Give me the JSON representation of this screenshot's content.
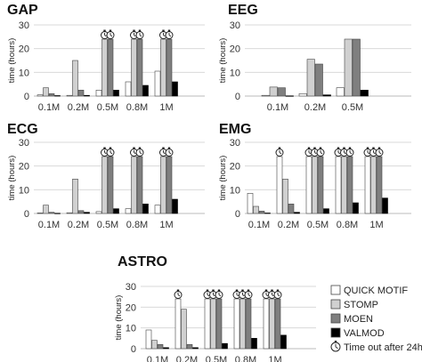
{
  "legend": [
    {
      "name": "QUICK MOTIF",
      "color": "#ffffff"
    },
    {
      "name": "STOMP",
      "color": "#d0d0d0"
    },
    {
      "name": "MOEN",
      "color": "#7f7f7f"
    },
    {
      "name": "VALMOD",
      "color": "#000000"
    }
  ],
  "timeout_note": "Time out after 24h",
  "chart_data": [
    {
      "type": "bar",
      "title": "GAP",
      "ylabel": "time (hours)",
      "ylim": [
        0,
        30
      ],
      "yticks": [
        0,
        10,
        20,
        30
      ],
      "categories": [
        "0.1M",
        "0.2M",
        "0.5M",
        "0.8M",
        "1M"
      ],
      "series": [
        {
          "name": "QUICK MOTIF",
          "values": [
            0.5,
            0.3,
            2.5,
            6,
            10.5
          ]
        },
        {
          "name": "STOMP",
          "values": [
            3.5,
            15,
            24,
            24,
            24
          ]
        },
        {
          "name": "MOEN",
          "values": [
            1,
            2.5,
            24,
            24,
            24
          ]
        },
        {
          "name": "VALMOD",
          "values": [
            0.2,
            0.3,
            2.5,
            4.5,
            6
          ]
        }
      ],
      "timeouts": [
        [
          2,
          1
        ],
        [
          2,
          2
        ],
        [
          3,
          1
        ],
        [
          3,
          2
        ],
        [
          4,
          1
        ],
        [
          4,
          2
        ]
      ]
    },
    {
      "type": "bar",
      "title": "EEG",
      "ylabel": "time (hours)",
      "ylim": [
        0,
        30
      ],
      "yticks": [
        0,
        10,
        20,
        30
      ],
      "categories": [
        "0.1M",
        "0.2M",
        "0.5M"
      ],
      "series": [
        {
          "name": "QUICK MOTIF",
          "values": [
            0.3,
            1,
            3.5
          ]
        },
        {
          "name": "STOMP",
          "values": [
            3.8,
            15.5,
            24
          ]
        },
        {
          "name": "MOEN",
          "values": [
            3.5,
            13.5,
            24
          ]
        },
        {
          "name": "VALMOD",
          "values": [
            0.1,
            0.5,
            2.5
          ]
        }
      ],
      "timeouts": []
    },
    {
      "type": "bar",
      "title": "ECG",
      "ylabel": "time (hours)",
      "ylim": [
        0,
        30
      ],
      "yticks": [
        0,
        10,
        20,
        30
      ],
      "categories": [
        "0.1M",
        "0.2M",
        "0.5M",
        "0.8M",
        "1M"
      ],
      "series": [
        {
          "name": "QUICK MOTIF",
          "values": [
            0.2,
            0.3,
            0.8,
            2,
            3.5
          ]
        },
        {
          "name": "STOMP",
          "values": [
            3.5,
            14.5,
            24,
            24,
            24
          ]
        },
        {
          "name": "MOEN",
          "values": [
            0.5,
            1.2,
            24,
            24,
            24
          ]
        },
        {
          "name": "VALMOD",
          "values": [
            0.1,
            0.5,
            2,
            4,
            6
          ]
        }
      ],
      "timeouts": [
        [
          2,
          1
        ],
        [
          2,
          2
        ],
        [
          3,
          1
        ],
        [
          3,
          2
        ],
        [
          4,
          1
        ],
        [
          4,
          2
        ]
      ]
    },
    {
      "type": "bar",
      "title": "EMG",
      "ylabel": "time (hours)",
      "ylim": [
        0,
        30
      ],
      "yticks": [
        0,
        10,
        20,
        30
      ],
      "categories": [
        "0.1M",
        "0.2M",
        "0.5M",
        "0.8M",
        "1M"
      ],
      "series": [
        {
          "name": "QUICK MOTIF",
          "values": [
            8.5,
            24,
            24,
            24,
            24
          ]
        },
        {
          "name": "STOMP",
          "values": [
            3,
            14.5,
            24,
            24,
            24
          ]
        },
        {
          "name": "MOEN",
          "values": [
            1,
            4,
            24,
            24,
            24
          ]
        },
        {
          "name": "VALMOD",
          "values": [
            0.2,
            0.5,
            2,
            4.5,
            6.5
          ]
        }
      ],
      "timeouts": [
        [
          1,
          0
        ],
        [
          2,
          0
        ],
        [
          2,
          1
        ],
        [
          2,
          2
        ],
        [
          3,
          0
        ],
        [
          3,
          1
        ],
        [
          3,
          2
        ],
        [
          4,
          0
        ],
        [
          4,
          1
        ],
        [
          4,
          2
        ]
      ]
    },
    {
      "type": "bar",
      "title": "ASTRO",
      "ylabel": "time (hours)",
      "ylim": [
        0,
        30
      ],
      "yticks": [
        0,
        10,
        20,
        30
      ],
      "categories": [
        "0.1M",
        "0.2M",
        "0.5M",
        "0.8M",
        "1M"
      ],
      "series": [
        {
          "name": "QUICK MOTIF",
          "values": [
            9,
            24,
            24,
            24,
            24
          ]
        },
        {
          "name": "STOMP",
          "values": [
            4,
            19,
            24,
            24,
            24
          ]
        },
        {
          "name": "MOEN",
          "values": [
            2,
            2,
            24,
            24,
            24
          ]
        },
        {
          "name": "VALMOD",
          "values": [
            0.5,
            0.5,
            2.5,
            5,
            6.5
          ]
        }
      ],
      "timeouts": [
        [
          1,
          0
        ],
        [
          2,
          0
        ],
        [
          2,
          1
        ],
        [
          2,
          2
        ],
        [
          3,
          0
        ],
        [
          3,
          1
        ],
        [
          3,
          2
        ],
        [
          4,
          0
        ],
        [
          4,
          1
        ],
        [
          4,
          2
        ]
      ]
    }
  ]
}
